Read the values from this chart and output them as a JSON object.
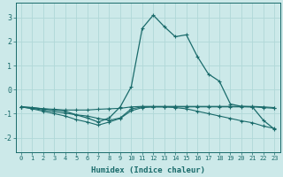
{
  "xlabel": "Humidex (Indice chaleur)",
  "xlim": [
    -0.5,
    23.5
  ],
  "ylim": [
    -2.6,
    3.6
  ],
  "yticks": [
    -2,
    -1,
    0,
    1,
    2,
    3
  ],
  "xticks": [
    0,
    1,
    2,
    3,
    4,
    5,
    6,
    7,
    8,
    9,
    10,
    11,
    12,
    13,
    14,
    15,
    16,
    17,
    18,
    19,
    20,
    21,
    22,
    23
  ],
  "background_color": "#cce9e9",
  "line_color": "#1a6b6b",
  "grid_color": "#b0d8d8",
  "line1_x": [
    0,
    1,
    2,
    3,
    4,
    5,
    6,
    7,
    8,
    9,
    10,
    11,
    12,
    13,
    14,
    15,
    16,
    17,
    18,
    19,
    20,
    21,
    22,
    23
  ],
  "line1_y": [
    -0.72,
    -0.75,
    -0.8,
    -0.82,
    -0.85,
    -0.85,
    -0.85,
    -0.82,
    -0.8,
    -0.78,
    -0.72,
    -0.7,
    -0.7,
    -0.7,
    -0.7,
    -0.7,
    -0.7,
    -0.7,
    -0.7,
    -0.7,
    -0.7,
    -0.7,
    -0.72,
    -0.75
  ],
  "line2_x": [
    0,
    1,
    2,
    3,
    4,
    5,
    6,
    7,
    8,
    9,
    10,
    11,
    12,
    13,
    14,
    15,
    16,
    17,
    18,
    19,
    20,
    21,
    22,
    23
  ],
  "line2_y": [
    -0.72,
    -0.78,
    -0.85,
    -0.92,
    -0.98,
    -1.05,
    -1.1,
    -1.2,
    -1.28,
    -1.18,
    -0.8,
    -0.72,
    -0.72,
    -0.72,
    -0.72,
    -0.72,
    -0.72,
    -0.72,
    -0.72,
    -0.72,
    -0.72,
    -0.72,
    -0.75,
    -0.78
  ],
  "line3_x": [
    0,
    1,
    2,
    3,
    4,
    5,
    6,
    7,
    8,
    9,
    10,
    11,
    12,
    13,
    14,
    15,
    16,
    17,
    18,
    19,
    20,
    21,
    22,
    23
  ],
  "line3_y": [
    -0.72,
    -0.8,
    -0.9,
    -1.0,
    -1.1,
    -1.25,
    -1.35,
    -1.48,
    -1.35,
    -1.2,
    -0.88,
    -0.75,
    -0.72,
    -0.72,
    -0.75,
    -0.8,
    -0.9,
    -1.0,
    -1.1,
    -1.2,
    -1.3,
    -1.38,
    -1.52,
    -1.62
  ],
  "line4_x": [
    0,
    1,
    2,
    3,
    4,
    5,
    6,
    7,
    8,
    9,
    10,
    11,
    12,
    13,
    14,
    15,
    16,
    17,
    18,
    19,
    20,
    21,
    22,
    23
  ],
  "line4_y": [
    -0.72,
    -0.75,
    -0.8,
    -0.85,
    -0.9,
    -1.05,
    -1.18,
    -1.35,
    -1.18,
    -0.72,
    0.12,
    2.55,
    3.1,
    2.62,
    2.2,
    2.28,
    1.38,
    0.65,
    0.35,
    -0.6,
    -0.7,
    -0.72,
    -1.28,
    -1.65
  ]
}
